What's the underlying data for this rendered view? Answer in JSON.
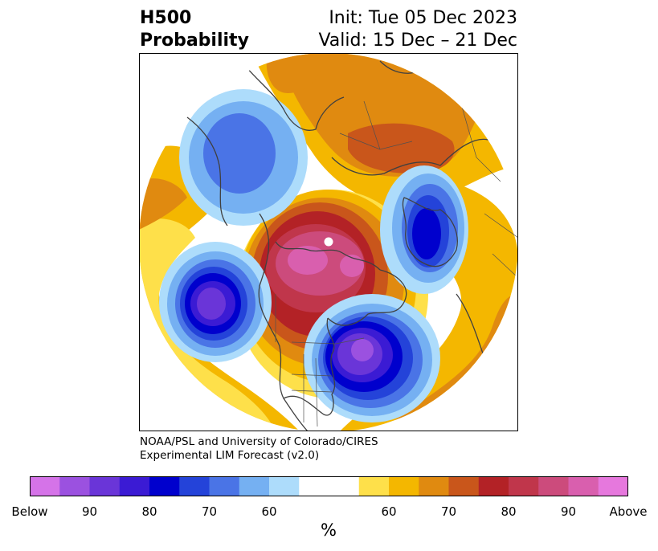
{
  "header": {
    "title_line1": "H500",
    "title_line2": "Probability",
    "init_label": "Init: Tue 05 Dec 2023",
    "valid_label": "Valid: 15 Dec – 21 Dec"
  },
  "credit": {
    "line1": "NOAA/PSL and University of Colorado/CIRES",
    "line2": "Experimental LIM Forecast (v2.0)"
  },
  "colorbar": {
    "colors": [
      "#d573e8",
      "#9b51e0",
      "#6a35d8",
      "#3b1bd4",
      "#0000cd",
      "#2443d9",
      "#4a74e6",
      "#75b0f2",
      "#addcfb",
      "#ffffff",
      "#ffffff",
      "#fee04a",
      "#f4b700",
      "#e08a10",
      "#c9561b",
      "#b32226",
      "#c0364b",
      "#cc4b7c",
      "#d95fae",
      "#e678dd"
    ],
    "tick_labels": [
      "Below",
      "90",
      "80",
      "70",
      "60",
      "60",
      "70",
      "80",
      "90",
      "Above"
    ],
    "tick_slots": [
      0,
      2,
      4,
      6,
      8,
      12,
      14,
      16,
      18,
      20
    ],
    "unit": "%"
  },
  "map": {
    "projection": "north-polar",
    "colors": {
      "yellow": "#fee04a",
      "gold": "#f4b700",
      "orange": "#e08a10",
      "rust": "#c9561b",
      "red": "#b32226",
      "crimson": "#c0364b",
      "rose": "#cc4b7c",
      "pink": "#d95fae",
      "lightblue": "#addcfb",
      "skyblue": "#75b0f2",
      "cornflower": "#4a74e6",
      "royal": "#2443d9",
      "blue": "#0000cd",
      "indigo": "#3b1bd4",
      "violet": "#6a35d8",
      "purple": "#9b51e0"
    }
  }
}
